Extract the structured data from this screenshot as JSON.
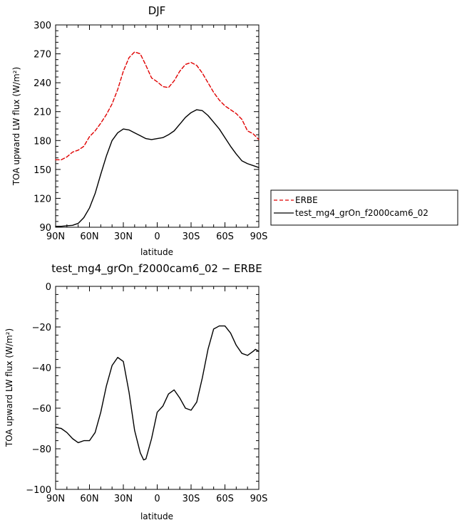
{
  "charts": [
    {
      "title": "DJF",
      "xlabel": "latitude",
      "ylabel": "TOA upward LW flux (W/m²)"
    },
    {
      "title": "test_mg4_grOn_f2000cam6_02 − ERBE",
      "xlabel": "latitude",
      "ylabel": "TOA upward LW flux (W/m²)"
    }
  ],
  "chart_data": [
    {
      "type": "line",
      "title": "DJF",
      "xlabel": "latitude",
      "ylabel": "TOA upward LW flux (W/m²)",
      "xlim": [
        90,
        -90
      ],
      "ylim": [
        90,
        300
      ],
      "x_ticks": [
        90,
        60,
        30,
        0,
        -30,
        -60,
        -90
      ],
      "x_tick_labels": [
        "90N",
        "60N",
        "30N",
        "0",
        "30S",
        "60S",
        "90S"
      ],
      "y_ticks": [
        90,
        120,
        150,
        180,
        210,
        240,
        270,
        300
      ],
      "y_tick_labels": [
        "90",
        "120",
        "150",
        "180",
        "210",
        "240",
        "270",
        "300"
      ],
      "legend_position": "right-outside",
      "grid": false,
      "series": [
        {
          "name": "ERBE",
          "color": "#e00000",
          "dash": "dashed",
          "x": [
            90,
            85,
            80,
            75,
            70,
            65,
            60,
            55,
            50,
            45,
            40,
            35,
            30,
            25,
            20,
            15,
            10,
            5,
            0,
            -5,
            -10,
            -15,
            -20,
            -25,
            -30,
            -35,
            -40,
            -45,
            -50,
            -55,
            -60,
            -65,
            -70,
            -75,
            -80,
            -85,
            -90
          ],
          "y": [
            160,
            160,
            163,
            168,
            170,
            174,
            184,
            190,
            198,
            207,
            218,
            233,
            252,
            266,
            272,
            270,
            258,
            245,
            241,
            236,
            235,
            242,
            252,
            259,
            261,
            258,
            250,
            240,
            230,
            222,
            216,
            212,
            208,
            202,
            190,
            187,
            181
          ]
        },
        {
          "name": "test_mg4_grOn_f2000cam6_02",
          "color": "#000000",
          "dash": "solid",
          "x": [
            90,
            85,
            80,
            75,
            70,
            65,
            60,
            55,
            50,
            45,
            40,
            35,
            30,
            25,
            20,
            15,
            10,
            5,
            0,
            -5,
            -10,
            -15,
            -20,
            -25,
            -30,
            -35,
            -40,
            -45,
            -50,
            -55,
            -60,
            -65,
            -70,
            -75,
            -80,
            -85,
            -90
          ],
          "y": [
            91,
            91,
            91.5,
            92,
            94,
            100,
            110,
            125,
            145,
            164,
            180,
            188,
            192,
            191,
            188,
            185,
            182,
            181,
            182,
            183,
            186,
            190,
            197,
            204,
            209,
            212,
            211,
            206,
            199,
            192,
            183,
            174,
            166,
            159,
            156,
            154,
            152
          ]
        }
      ]
    },
    {
      "type": "line",
      "title": "test_mg4_grOn_f2000cam6_02 − ERBE",
      "xlabel": "latitude",
      "ylabel": "TOA upward LW flux (W/m²)",
      "xlim": [
        90,
        -90
      ],
      "ylim": [
        -100,
        0
      ],
      "x_ticks": [
        90,
        60,
        30,
        0,
        -30,
        -60,
        -90
      ],
      "x_tick_labels": [
        "90N",
        "60N",
        "30N",
        "0",
        "30S",
        "60S",
        "90S"
      ],
      "y_ticks": [
        -100,
        -80,
        -60,
        -40,
        -20,
        0
      ],
      "y_tick_labels": [
        "−100",
        "−80",
        "−60",
        "−40",
        "−20",
        "0"
      ],
      "grid": false,
      "series": [
        {
          "color": "#000000",
          "dash": "solid",
          "x": [
            90,
            85,
            80,
            75,
            70,
            65,
            60,
            55,
            50,
            45,
            40,
            35,
            30,
            25,
            20,
            15,
            12,
            10,
            5,
            0,
            -5,
            -10,
            -15,
            -20,
            -25,
            -30,
            -35,
            -40,
            -45,
            -50,
            -55,
            -60,
            -65,
            -70,
            -75,
            -80,
            -85,
            -87,
            -90
          ],
          "y": [
            -69.5,
            -70,
            -72,
            -75,
            -77,
            -76,
            -76,
            -72,
            -62,
            -49,
            -39,
            -35,
            -37,
            -52,
            -71,
            -82,
            -85.5,
            -85,
            -75,
            -62,
            -59,
            -53,
            -51,
            -55,
            -60,
            -61,
            -57,
            -45,
            -31,
            -21,
            -19.5,
            -19.5,
            -23,
            -29,
            -33,
            -34,
            -32,
            -31,
            -32
          ]
        }
      ]
    }
  ]
}
